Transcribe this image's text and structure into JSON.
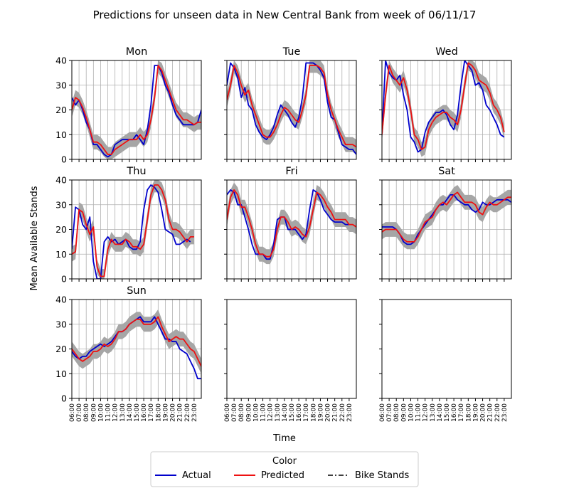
{
  "figure": {
    "title": "Predictions for unseen data in New Central Bank from week of 06/11/17",
    "xlabel": "Time",
    "ylabel": "Mean Available Stands"
  },
  "legend": {
    "title": "Color",
    "items": [
      {
        "label": "Actual",
        "color": "#0000cc",
        "style": "solid"
      },
      {
        "label": "Predicted",
        "color": "#ee1111",
        "style": "solid"
      },
      {
        "label": "Bike Stands",
        "color": "#000000",
        "style": "dashdot"
      }
    ]
  },
  "colors": {
    "band": "#a6a6a6",
    "grid": "#b0b0b0"
  },
  "chart_data": {
    "type": "line",
    "x_ticks": [
      "06:00",
      "07:00",
      "08:00",
      "09:00",
      "10:00",
      "11:00",
      "12:00",
      "13:00",
      "14:00",
      "15:00",
      "16:00",
      "17:00",
      "18:00",
      "19:00",
      "20:00",
      "21:00",
      "22:00",
      "23:00"
    ],
    "x_start_hour": 6,
    "x_step_hours": 0.5,
    "ylim": [
      0,
      40
    ],
    "y_ticks": [
      0,
      10,
      20,
      30,
      40
    ],
    "grid": true,
    "legend_position": "bottom-center",
    "band_halfwidth": 3,
    "panels": [
      {
        "title": "Mon",
        "actual": [
          25,
          22,
          24,
          20,
          15,
          12,
          6,
          6,
          4,
          2,
          1,
          2,
          6,
          7,
          8,
          8,
          8,
          8,
          10,
          8,
          6,
          12,
          22,
          38,
          38,
          35,
          30,
          27,
          22,
          18,
          16,
          14,
          14,
          14,
          14,
          15,
          20
        ],
        "predicted": [
          20,
          25,
          24,
          21,
          17,
          12,
          7,
          7,
          6,
          4,
          2,
          2,
          4,
          5,
          6,
          7,
          8,
          8,
          8,
          10,
          8,
          10,
          16,
          25,
          38,
          36,
          32,
          28,
          24,
          20,
          18,
          16,
          16,
          15,
          14,
          15,
          15
        ]
      },
      {
        "title": "Tue",
        "actual": [
          30,
          39,
          37,
          33,
          25,
          29,
          22,
          20,
          14,
          11,
          9,
          8,
          10,
          13,
          18,
          22,
          20,
          18,
          15,
          13,
          17,
          25,
          39,
          39,
          39,
          38,
          36,
          33,
          23,
          17,
          16,
          11,
          6,
          5,
          4,
          4,
          2
        ],
        "predicted": [
          24,
          30,
          38,
          35,
          30,
          26,
          28,
          22,
          18,
          14,
          10,
          9,
          9,
          11,
          14,
          18,
          21,
          20,
          18,
          16,
          15,
          20,
          26,
          38,
          38,
          38,
          37,
          35,
          26,
          20,
          16,
          12,
          9,
          6,
          6,
          6,
          5
        ]
      },
      {
        "title": "Wed",
        "actual": [
          10,
          40,
          35,
          33,
          32,
          34,
          26,
          20,
          9,
          7,
          3,
          4,
          11,
          15,
          17,
          19,
          19,
          20,
          18,
          14,
          12,
          18,
          30,
          40,
          38,
          36,
          30,
          31,
          28,
          22,
          20,
          17,
          14,
          10,
          9
        ],
        "predicted": [
          10,
          26,
          38,
          34,
          32,
          30,
          33,
          28,
          20,
          10,
          8,
          4,
          5,
          12,
          15,
          17,
          18,
          19,
          19,
          17,
          16,
          14,
          20,
          30,
          39,
          38,
          36,
          32,
          31,
          30,
          27,
          22,
          20,
          17,
          11
        ]
      },
      {
        "title": "Thu",
        "actual": [
          12,
          29,
          28,
          22,
          20,
          25,
          7,
          0,
          0,
          15,
          17,
          15,
          16,
          14,
          15,
          16,
          13,
          12,
          12,
          15,
          28,
          36,
          38,
          37,
          35,
          28,
          20,
          19,
          18,
          14,
          14,
          15,
          16,
          15
        ],
        "predicted": [
          10,
          11,
          28,
          27,
          22,
          18,
          21,
          5,
          1,
          1,
          12,
          16,
          14,
          14,
          14,
          16,
          15,
          13,
          13,
          12,
          14,
          24,
          34,
          38,
          38,
          36,
          32,
          24,
          20,
          20,
          19,
          17,
          15,
          17,
          17
        ]
      },
      {
        "title": "Fri",
        "actual": [
          34,
          36,
          35,
          30,
          30,
          25,
          20,
          14,
          10,
          10,
          10,
          8,
          8,
          14,
          24,
          25,
          25,
          20,
          20,
          20,
          18,
          16,
          18,
          28,
          36,
          35,
          32,
          28,
          26,
          24,
          23,
          23,
          23,
          22,
          22
        ],
        "predicted": [
          24,
          33,
          36,
          34,
          29,
          29,
          25,
          20,
          14,
          10,
          10,
          9,
          9,
          12,
          20,
          25,
          25,
          23,
          20,
          21,
          20,
          18,
          17,
          21,
          28,
          35,
          34,
          32,
          29,
          27,
          24,
          24,
          24,
          24,
          22,
          22,
          21
        ]
      },
      {
        "title": "Sat",
        "actual": [
          21,
          21,
          21,
          21,
          20,
          18,
          15,
          14,
          14,
          15,
          18,
          20,
          22,
          24,
          26,
          28,
          30,
          30,
          32,
          34,
          34,
          32,
          31,
          30,
          30,
          28,
          27,
          28,
          31,
          30,
          30,
          31,
          32,
          32,
          32,
          32,
          31,
          30,
          27
        ],
        "predicted": [
          19,
          20,
          20,
          20,
          20,
          18,
          16,
          15,
          15,
          15,
          17,
          20,
          23,
          24,
          25,
          28,
          30,
          31,
          30,
          32,
          34,
          35,
          33,
          31,
          31,
          31,
          30,
          27,
          26,
          29,
          31,
          30,
          30,
          31,
          32,
          33,
          33,
          33,
          32,
          30,
          29
        ]
      },
      {
        "title": "Sun",
        "actual": [
          19,
          17,
          16,
          17,
          17,
          19,
          20,
          21,
          22,
          21,
          22,
          23,
          25,
          27,
          27,
          28,
          30,
          31,
          32,
          33,
          31,
          31,
          31,
          33,
          30,
          27,
          24,
          24,
          23,
          23,
          20,
          19,
          18,
          15,
          12,
          8,
          8,
          6
        ],
        "predicted": [
          20,
          18,
          16,
          15,
          16,
          17,
          19,
          19,
          20,
          22,
          21,
          22,
          24,
          27,
          27,
          28,
          30,
          31,
          32,
          32,
          30,
          30,
          30,
          31,
          33,
          29,
          26,
          23,
          24,
          25,
          24,
          24,
          22,
          20,
          19,
          16,
          13,
          11,
          9
        ]
      },
      {
        "title": "",
        "actual": [],
        "predicted": []
      },
      {
        "title": "",
        "actual": [],
        "predicted": []
      }
    ]
  }
}
